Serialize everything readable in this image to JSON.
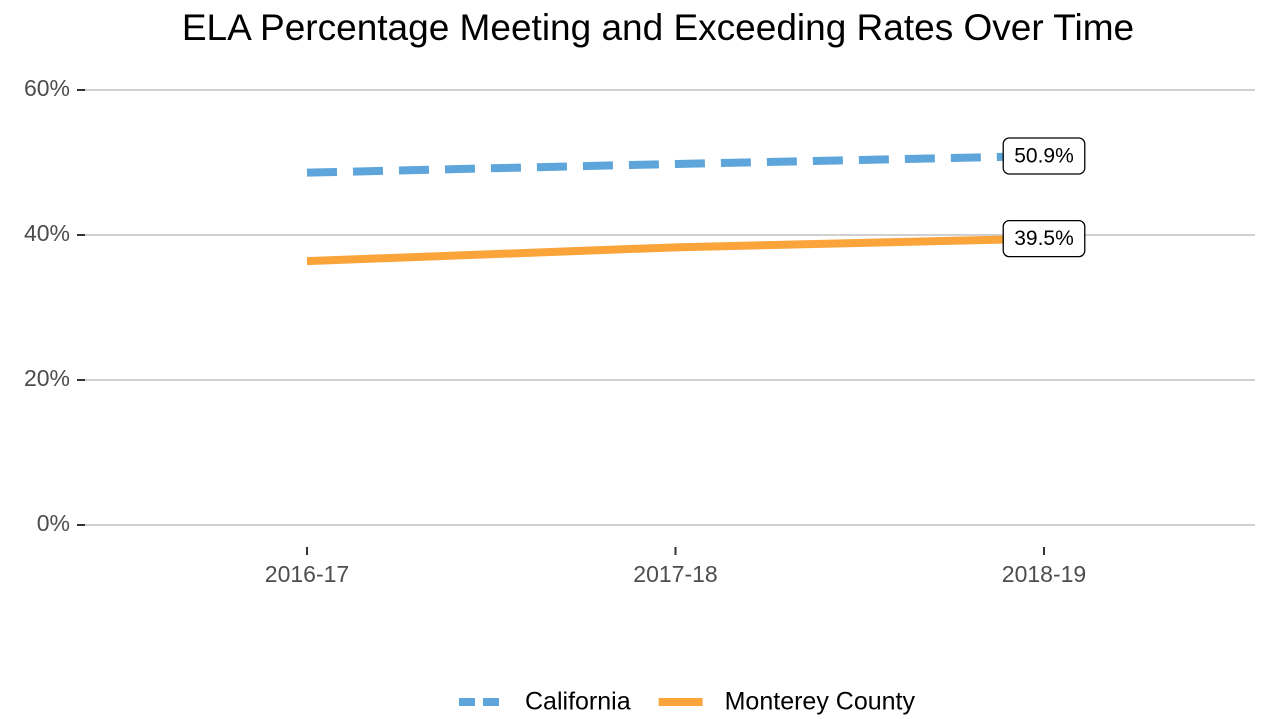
{
  "chart_data": {
    "type": "line",
    "title": "ELA Percentage Meeting and Exceeding Rates Over Time",
    "categories": [
      "2016-17",
      "2017-18",
      "2018-19"
    ],
    "series": [
      {
        "name": "California",
        "color": "#5da5da",
        "dash": "dashed",
        "values": [
          48.6,
          49.8,
          50.9
        ],
        "value_labels": [
          null,
          null,
          "50.9%"
        ]
      },
      {
        "name": "Monterey County",
        "color": "#faa43a",
        "dash": "solid",
        "values": [
          36.4,
          38.3,
          39.5
        ],
        "value_labels": [
          null,
          null,
          "39.5%"
        ]
      }
    ],
    "ylim": [
      0,
      60
    ],
    "yticks": [
      {
        "value": 0,
        "label": "0%"
      },
      {
        "value": 20,
        "label": "20%"
      },
      {
        "value": 40,
        "label": "40%"
      },
      {
        "value": 60,
        "label": "60%"
      }
    ],
    "grid": true,
    "legend": "bottom"
  }
}
